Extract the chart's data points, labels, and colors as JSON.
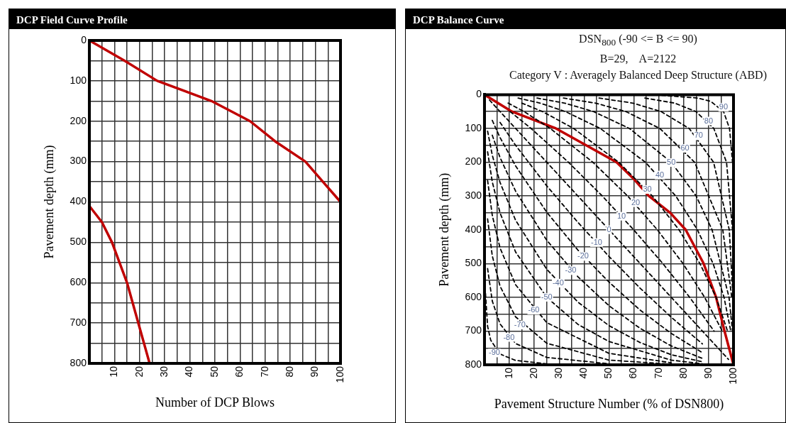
{
  "chart_data": [
    {
      "type": "line",
      "title": "DCP Field Curve Profile",
      "xlabel": "Number of DCP Blows",
      "ylabel": "Pavement depth (mm)",
      "xlim": [
        0,
        100
      ],
      "ylim": [
        800,
        0
      ],
      "xticks": [
        {
          "value": 0,
          "label": null
        },
        {
          "value": 5,
          "label": null
        },
        10,
        {
          "value": 15,
          "label": null
        },
        20,
        {
          "value": 25,
          "label": null
        },
        30,
        {
          "value": 35,
          "label": null
        },
        40,
        {
          "value": 45,
          "label": null
        },
        50,
        {
          "value": 55,
          "label": null
        },
        60,
        {
          "value": 65,
          "label": null
        },
        70,
        {
          "value": 75,
          "label": null
        },
        80,
        {
          "value": 85,
          "label": null
        },
        90,
        {
          "value": 95,
          "label": null
        },
        100
      ],
      "yticks": [
        0,
        {
          "value": 50,
          "label": null
        },
        100,
        {
          "value": 150,
          "label": null
        },
        200,
        {
          "value": 250,
          "label": null
        },
        300,
        {
          "value": 350,
          "label": null
        },
        400,
        {
          "value": 450,
          "label": null
        },
        500,
        {
          "value": 550,
          "label": null
        },
        600,
        {
          "value": 650,
          "label": null
        },
        700,
        {
          "value": 750,
          "label": null
        },
        800
      ],
      "grid": true,
      "legend": false,
      "marker": "none",
      "line_style": "solid",
      "series": [
        {
          "color": "#c00000",
          "x": [
            0,
            14,
            27,
            48.6,
            64,
            74,
            86,
            93,
            100
          ],
          "values": [
            0,
            50,
            100,
            150,
            200,
            250,
            300,
            350,
            400
          ]
        },
        {
          "color": "#c00000",
          "x": [
            0,
            5,
            9,
            15,
            19.5,
            24
          ],
          "values": [
            410,
            450,
            500,
            600,
            700,
            800
          ]
        }
      ]
    },
    {
      "type": "line",
      "title": "DCP Balance Curve",
      "subtitle": "DSN$_{800}$ (-90 <= B <= 90)\nB=29,    A=2122\nCategory V : Averagely Balanced Deep Structure (ABD)",
      "xlabel": "Pavement Structure Number (% of DSN800)",
      "ylabel": "Pavement depth (mm)",
      "xlim": [
        0,
        100
      ],
      "ylim": [
        800,
        0
      ],
      "xticks": [
        {
          "value": 0,
          "label": null
        },
        {
          "value": 5,
          "label": null
        },
        10,
        {
          "value": 15,
          "label": null
        },
        20,
        {
          "value": 25,
          "label": null
        },
        30,
        {
          "value": 35,
          "label": null
        },
        40,
        {
          "value": 45,
          "label": null
        },
        50,
        {
          "value": 55,
          "label": null
        },
        60,
        {
          "value": 65,
          "label": null
        },
        70,
        {
          "value": 75,
          "label": null
        },
        80,
        {
          "value": 85,
          "label": null
        },
        90,
        {
          "value": 95,
          "label": null
        },
        100
      ],
      "yticks": [
        0,
        {
          "value": 50,
          "label": null
        },
        100,
        {
          "value": 150,
          "label": null
        },
        200,
        {
          "value": 250,
          "label": null
        },
        300,
        {
          "value": 350,
          "label": null
        },
        400,
        {
          "value": 450,
          "label": null
        },
        500,
        {
          "value": 550,
          "label": null
        },
        600,
        {
          "value": 650,
          "label": null
        },
        700,
        {
          "value": 750,
          "label": null
        },
        800
      ],
      "grid": true,
      "legend": false,
      "marker": "none",
      "line_style": "dashed",
      "series": [
        {
          "color": "#000000",
          "x": [
            71.2,
            85.7,
            90.9,
            96,
            98.4,
            99.6
          ],
          "values": [
            2,
            10,
            20,
            50,
            100,
            200
          ]
        },
        {
          "color": "#000000",
          "x": [
            64.4,
            76.4,
            84.9,
            92.1,
            97.2,
            99.6
          ],
          "values": [
            10,
            25,
            50,
            100,
            200,
            400
          ]
        },
        {
          "color": "#000000",
          "x": [
            46,
            59.6,
            70.9,
            82.2,
            92,
            98.3,
            99.8
          ],
          "values": [
            10,
            25,
            50,
            100,
            200,
            400,
            600
          ]
        },
        {
          "color": "#000000",
          "x": [
            31.7,
            44.6,
            56.8,
            70.4,
            84.4,
            95.7,
            99.3
          ],
          "values": [
            10,
            25,
            50,
            100,
            200,
            400,
            600
          ]
        },
        {
          "color": "#000000",
          "x": [
            21.1,
            32.2,
            43.8,
            58.2,
            75,
            85,
            91.4,
            98.2,
            99.6
          ],
          "values": [
            10,
            25,
            50,
            100,
            200,
            300,
            400,
            600,
            700
          ]
        },
        {
          "color": "#000000",
          "x": [
            13.5,
            22.4,
            32.5,
            46.5,
            64.6,
            76.8,
            85.5,
            91.8,
            96.2,
            98.9
          ],
          "values": [
            10,
            25,
            50,
            100,
            200,
            300,
            400,
            500,
            600,
            700
          ]
        },
        {
          "color": "#000000",
          "x": [
            15,
            23.3,
            35.8,
            53.9,
            67.4,
            78.1,
            86.5,
            93,
            97.6
          ],
          "values": [
            25,
            50,
            100,
            200,
            300,
            400,
            500,
            600,
            700
          ]
        },
        {
          "color": "#000000",
          "x": [
            9.5,
            15.9,
            26.4,
            43.5,
            57.5,
            69.4,
            79.7,
            88.4,
            95.5
          ],
          "values": [
            25,
            50,
            100,
            200,
            300,
            400,
            500,
            600,
            700
          ]
        },
        {
          "color": "#000000",
          "x": [
            10.3,
            18.7,
            33.7,
            47.3,
            59.9,
            71.6,
            82.4,
            92.2
          ],
          "values": [
            50,
            100,
            200,
            300,
            400,
            500,
            600,
            700
          ]
        },
        {
          "color": "#000000",
          "x": [
            2,
            98
          ],
          "values": [
            16,
            784
          ]
        },
        {
          "color": "#000000",
          "x": [
            6.25,
            12.5,
            25,
            37.5,
            50,
            62.5,
            75,
            87.5
          ],
          "values": [
            82,
            150,
            270,
            378,
            479,
            573,
            659,
            738
          ]
        },
        {
          "color": "#000000",
          "x": [
            3.125,
            6.25,
            12.5,
            25,
            37.5,
            50,
            62.5,
            75,
            87.5
          ],
          "values": [
            76,
            127,
            211,
            348,
            460,
            555,
            638,
            707,
            764
          ]
        },
        {
          "color": "#000000",
          "x": [
            3.125,
            6.25,
            12.5,
            25,
            37.5,
            50,
            62.5,
            75,
            87.5
          ],
          "values": [
            120,
            186,
            286,
            431,
            539,
            625,
            692,
            744,
            781
          ]
        },
        {
          "color": "#000000",
          "x": [
            1.25,
            3.125,
            6.25,
            12.5,
            25,
            37.5,
            50,
            62.5,
            75,
            87.5
          ],
          "values": [
            108,
            179,
            260,
            372,
            517,
            614,
            684,
            734,
            770,
            791
          ]
        },
        {
          "color": "#000000",
          "x": [
            1.25,
            3.125,
            6.25,
            12.5,
            25,
            37.5,
            50,
            75,
            87.5
          ],
          "values": [
            169,
            258,
            350,
            466,
            600,
            680,
            731,
            786,
            797
          ]
        },
        {
          "color": "#000000",
          "x": [
            1.25,
            3.125,
            6.25,
            12.5,
            25,
            50,
            75
          ],
          "values": [
            254,
            357,
            454,
            563,
            675,
            766,
            794
          ]
        },
        {
          "color": "#000000",
          "x": [
            1.25,
            3.125,
            6.25,
            12.5,
            25,
            50,
            75
          ],
          "values": [
            368,
            477,
            567,
            658,
            736,
            786,
            798
          ]
        },
        {
          "color": "#000000",
          "x": [
            1.25,
            3.125,
            6.25,
            12.5,
            25,
            50
          ],
          "values": [
            515,
            611,
            679,
            737,
            778,
            797
          ]
        },
        {
          "color": "#000000",
          "x": [
            0.25,
            1.25,
            2.5,
            6.25,
            12.5,
            25
          ],
          "values": [
            570,
            686,
            727,
            768,
            787,
            797
          ]
        },
        {
          "color": "#c00000",
          "line_style": "solid",
          "x": [
            0,
            11,
            28.7,
            53,
            60,
            66,
            74.6,
            80.8,
            88,
            93,
            96.4,
            100
          ],
          "values": [
            0,
            50,
            100,
            200,
            250,
            300,
            350,
            400,
            500,
            600,
            700,
            800
          ]
        }
      ],
      "annotations": [
        {
          "text": "90",
          "x": 96,
          "y": 37
        },
        {
          "text": "80",
          "x": 90,
          "y": 78
        },
        {
          "text": "70",
          "x": 86,
          "y": 122
        },
        {
          "text": "60",
          "x": 80.5,
          "y": 159
        },
        {
          "text": "50",
          "x": 75,
          "y": 201
        },
        {
          "text": "40",
          "x": 70.4,
          "y": 238
        },
        {
          "text": "30",
          "x": 65.4,
          "y": 281
        },
        {
          "text": "20",
          "x": 60.7,
          "y": 320
        },
        {
          "text": "10",
          "x": 55,
          "y": 360
        },
        {
          "text": "0",
          "x": 50,
          "y": 400
        },
        {
          "text": "-10",
          "x": 45,
          "y": 438
        },
        {
          "text": "-20",
          "x": 39.6,
          "y": 479
        },
        {
          "text": "-30",
          "x": 34.6,
          "y": 521
        },
        {
          "text": "-40",
          "x": 29.6,
          "y": 558
        },
        {
          "text": "-50",
          "x": 25,
          "y": 600
        },
        {
          "text": "-60",
          "x": 19.8,
          "y": 638
        },
        {
          "text": "-70",
          "x": 14.2,
          "y": 682
        },
        {
          "text": "-80",
          "x": 9.8,
          "y": 719
        },
        {
          "text": "-90",
          "x": 4,
          "y": 765
        }
      ]
    }
  ]
}
